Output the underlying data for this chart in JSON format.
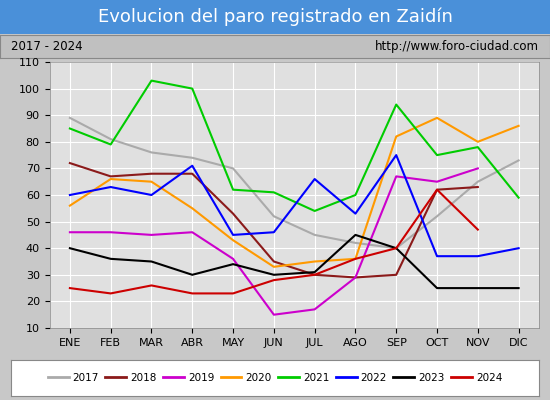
{
  "title": "Evolucion del paro registrado en Zaidín",
  "subtitle_left": "2017 - 2024",
  "subtitle_right": "http://www.foro-ciudad.com",
  "months": [
    "ENE",
    "FEB",
    "MAR",
    "ABR",
    "MAY",
    "JUN",
    "JUL",
    "AGO",
    "SEP",
    "OCT",
    "NOV",
    "DIC"
  ],
  "ylim": [
    10,
    110
  ],
  "yticks": [
    10,
    20,
    30,
    40,
    50,
    60,
    70,
    80,
    90,
    100,
    110
  ],
  "series": {
    "2017": {
      "color": "#aaaaaa",
      "values": [
        89,
        81,
        76,
        74,
        70,
        52,
        45,
        42,
        40,
        52,
        65,
        73
      ]
    },
    "2018": {
      "color": "#8b1a1a",
      "values": [
        72,
        67,
        68,
        68,
        53,
        35,
        30,
        29,
        30,
        62,
        63,
        null
      ]
    },
    "2019": {
      "color": "#cc00cc",
      "values": [
        46,
        46,
        45,
        46,
        36,
        15,
        17,
        29,
        67,
        65,
        70,
        null
      ]
    },
    "2020": {
      "color": "#ff9900",
      "values": [
        56,
        66,
        65,
        55,
        43,
        33,
        35,
        36,
        82,
        89,
        80,
        86
      ]
    },
    "2021": {
      "color": "#00cc00",
      "values": [
        85,
        79,
        103,
        100,
        62,
        61,
        54,
        60,
        94,
        75,
        78,
        59
      ]
    },
    "2022": {
      "color": "#0000ff",
      "values": [
        60,
        63,
        60,
        71,
        45,
        46,
        66,
        53,
        75,
        37,
        37,
        40
      ]
    },
    "2023": {
      "color": "#000000",
      "values": [
        40,
        36,
        35,
        30,
        34,
        30,
        31,
        45,
        40,
        25,
        25,
        25
      ]
    },
    "2024": {
      "color": "#cc0000",
      "values": [
        25,
        23,
        26,
        23,
        23,
        28,
        30,
        36,
        40,
        62,
        47,
        null
      ]
    }
  },
  "fig_bg": "#c8c8c8",
  "plot_bg": "#e0e0e0",
  "title_bg": "#4a90d9",
  "title_color": "white",
  "title_fontsize": 13,
  "subtitle_bg": "#c0c0c0",
  "grid_color": "white",
  "legend_bg": "white"
}
